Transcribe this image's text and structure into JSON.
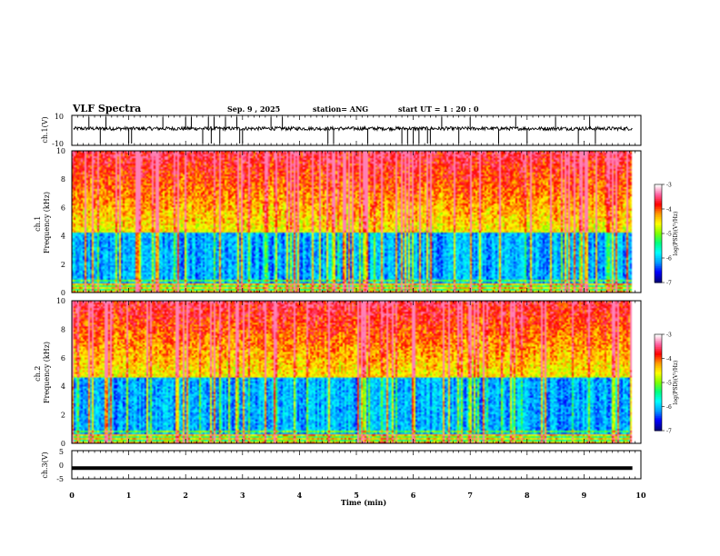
{
  "header": {
    "title": "VLF Spectra",
    "date": "Sep. 9 , 2025",
    "station": "station= ANG",
    "start_time": "start  UT =   1 : 20 : 0"
  },
  "chart_data": [
    {
      "type": "line",
      "name": "ch1-waveform",
      "ylabel": "ch.1(V)",
      "ylim": [
        -10,
        10
      ],
      "yticks": [
        10,
        -10
      ],
      "baseline": 3,
      "noise": 1.2,
      "spikes": [
        0.3,
        0.5,
        0.6,
        1.0,
        1.05,
        1.6,
        2.0,
        2.1,
        2.3,
        2.4,
        2.45,
        2.5,
        2.6,
        2.7,
        2.9,
        2.95,
        3.0,
        3.5,
        3.7,
        4.5,
        4.6,
        5.2,
        5.8,
        5.9,
        6.0,
        6.1,
        6.25,
        6.3,
        6.5,
        6.8,
        7.0,
        7.5,
        7.8,
        8.0,
        8.5,
        8.9,
        9.1,
        9.2
      ]
    },
    {
      "type": "heatmap",
      "name": "ch1-spectrogram",
      "ylabel": "ch.1\nFrequency  (kHz)",
      "xlim": [
        0,
        10
      ],
      "ylim": [
        0,
        10
      ],
      "yticks": [
        0,
        2,
        4,
        6,
        8,
        10
      ],
      "data_end_min": 9.85,
      "band_top_khz": 4.2,
      "colorbar": {
        "label": "log(PSD)(V²/Hz)",
        "range": [
          -7,
          -3
        ],
        "ticks": [
          "-3",
          "-4",
          "-5",
          "-6",
          "-7"
        ],
        "colors": [
          "#000080",
          "#0000ff",
          "#00a0ff",
          "#00ffff",
          "#00ff80",
          "#80ff00",
          "#ffff00",
          "#ffa000",
          "#ff0000",
          "#ff60a0",
          "#ffffff"
        ]
      }
    },
    {
      "type": "heatmap",
      "name": "ch2-spectrogram",
      "ylabel": "ch.2\nFrequency  (kHz)",
      "xlim": [
        0,
        10
      ],
      "ylim": [
        0,
        10
      ],
      "yticks": [
        0,
        2,
        4,
        6,
        8,
        10
      ],
      "data_end_min": 9.85,
      "band_top_khz": 4.5,
      "colorbar": {
        "label": "log(PSD)(V²/Hz)",
        "range": [
          -7,
          -3
        ],
        "ticks": [
          "-3",
          "-4",
          "-5",
          "-6",
          "-7"
        ],
        "colors": [
          "#000080",
          "#0000ff",
          "#00a0ff",
          "#00ffff",
          "#00ff80",
          "#80ff00",
          "#ffff00",
          "#ffa000",
          "#ff0000",
          "#ff60a0",
          "#ffffff"
        ]
      }
    },
    {
      "type": "line",
      "name": "ch3-waveform",
      "ylabel": "ch.3(V)",
      "ylim": [
        -5,
        5
      ],
      "yticks": [
        5,
        0,
        -5
      ],
      "constant_value": -1.2
    }
  ],
  "xaxis": {
    "label": "Time  (min)",
    "range": [
      0,
      10
    ],
    "ticks": [
      "0",
      "1",
      "2",
      "3",
      "4",
      "5",
      "6",
      "7",
      "8",
      "9",
      "10"
    ]
  }
}
